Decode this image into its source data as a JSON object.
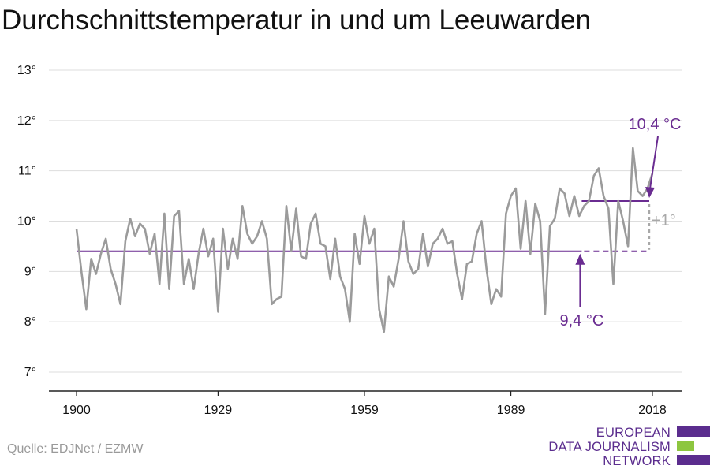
{
  "title": "Durchschnittstemperatur in und um Leeuwarden",
  "source": "Quelle: EDJNet / EZMW",
  "logo": {
    "lines": [
      "EUROPEAN",
      "DATA JOURNALISM",
      "NETWORK"
    ],
    "colors": {
      "purple": "#5b2d8e",
      "green": "#8dc63f"
    }
  },
  "colors": {
    "series": "#9b9b9b",
    "reference": "#6a2c91",
    "difference": "#a8a8a8",
    "grid": "#dddddd",
    "axis": "#222222"
  },
  "chart_data": {
    "type": "line",
    "title": "Durchschnittstemperatur in und um Leeuwarden",
    "xlabel": "",
    "ylabel": "",
    "xlim": [
      1900,
      2018
    ],
    "ylim": [
      7,
      13
    ],
    "x_ticks": [
      1900,
      1929,
      1959,
      1989,
      2018
    ],
    "y_ticks": [
      {
        "value": 7,
        "label": "7°"
      },
      {
        "value": 8,
        "label": "8°"
      },
      {
        "value": 9,
        "label": "9°"
      },
      {
        "value": 10,
        "label": "10°"
      },
      {
        "value": 11,
        "label": "11°"
      },
      {
        "value": 12,
        "label": "12°"
      },
      {
        "value": 13,
        "label": "13°"
      }
    ],
    "grid": "horizontal",
    "x": [
      1900,
      1901,
      1902,
      1903,
      1904,
      1905,
      1906,
      1907,
      1908,
      1909,
      1910,
      1911,
      1912,
      1913,
      1914,
      1915,
      1916,
      1917,
      1918,
      1919,
      1920,
      1921,
      1922,
      1923,
      1924,
      1925,
      1926,
      1927,
      1928,
      1929,
      1930,
      1931,
      1932,
      1933,
      1934,
      1935,
      1936,
      1937,
      1938,
      1939,
      1940,
      1941,
      1942,
      1943,
      1944,
      1945,
      1946,
      1947,
      1948,
      1949,
      1950,
      1951,
      1952,
      1953,
      1954,
      1955,
      1956,
      1957,
      1958,
      1959,
      1960,
      1961,
      1962,
      1963,
      1964,
      1965,
      1966,
      1967,
      1968,
      1969,
      1970,
      1971,
      1972,
      1973,
      1974,
      1975,
      1976,
      1977,
      1978,
      1979,
      1980,
      1981,
      1982,
      1983,
      1984,
      1985,
      1986,
      1987,
      1988,
      1989,
      1990,
      1991,
      1992,
      1993,
      1994,
      1995,
      1996,
      1997,
      1998,
      1999,
      2000,
      2001,
      2002,
      2003,
      2004,
      2005,
      2006,
      2007,
      2008,
      2009,
      2010,
      2011,
      2012,
      2013,
      2014,
      2015,
      2016,
      2017,
      2018
    ],
    "values": [
      9.85,
      9.0,
      8.25,
      9.25,
      8.95,
      9.35,
      9.65,
      9.05,
      8.75,
      8.35,
      9.6,
      10.05,
      9.7,
      9.95,
      9.85,
      9.35,
      9.75,
      8.75,
      10.15,
      8.65,
      10.1,
      10.2,
      8.75,
      9.25,
      8.65,
      9.35,
      9.85,
      9.3,
      9.65,
      8.2,
      9.85,
      9.05,
      9.65,
      9.25,
      10.3,
      9.75,
      9.55,
      9.7,
      10.0,
      9.65,
      8.35,
      8.45,
      8.5,
      10.3,
      9.4,
      10.25,
      9.3,
      9.25,
      9.95,
      10.15,
      9.55,
      9.5,
      8.85,
      9.65,
      8.9,
      8.65,
      8.0,
      9.75,
      9.15,
      10.1,
      9.55,
      9.85,
      8.25,
      7.8,
      8.9,
      8.7,
      9.25,
      10.0,
      9.2,
      8.95,
      9.05,
      9.75,
      9.1,
      9.55,
      9.65,
      9.85,
      9.55,
      9.6,
      8.95,
      8.45,
      9.15,
      9.2,
      9.75,
      10.0,
      9.05,
      8.35,
      8.65,
      8.5,
      10.15,
      10.5,
      10.65,
      9.45,
      10.4,
      9.35,
      10.35,
      10.0,
      8.15,
      9.9,
      10.05,
      10.65,
      10.55,
      10.1,
      10.5,
      10.1,
      10.3,
      10.4,
      10.9,
      11.05,
      10.5,
      10.25,
      8.75,
      10.4,
      10.0,
      9.5,
      11.45,
      10.6,
      10.5,
      10.65,
      10.95
    ],
    "reference_lines": [
      {
        "label": "9,4 °C",
        "value": 9.4,
        "solid_range": [
          1900,
          2004
        ],
        "dashed_range": [
          2004,
          2018
        ]
      },
      {
        "label": "10,4 °C",
        "value": 10.4,
        "solid_range": [
          2004,
          2018
        ]
      }
    ],
    "difference_label": "+1°"
  }
}
